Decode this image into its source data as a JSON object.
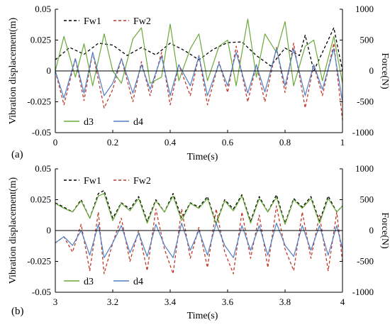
{
  "chart_data": [
    {
      "panel_label": "(a)",
      "type": "line",
      "xlabel": "Time(s)",
      "ylabel_left": "Vibration displacement(m)",
      "ylabel_right": "Force(N)",
      "xlim": [
        0,
        1
      ],
      "xticks": [
        0,
        0.2,
        0.4,
        0.6,
        0.8,
        1
      ],
      "xtick_labels": [
        "0",
        "0.2",
        "0.4",
        "0.6",
        "0.8",
        "1"
      ],
      "ylim_left": [
        -0.05,
        0.05
      ],
      "yticks_left": [
        -0.05,
        -0.025,
        0,
        0.025,
        0.05
      ],
      "ytick_labels_left": [
        "-0.05",
        "-0.025",
        "0",
        "0.025",
        "0.05"
      ],
      "ylim_right": [
        -1000,
        1000
      ],
      "yticks_right": [
        -1000,
        -500,
        0,
        500,
        1000
      ],
      "ytick_labels_right": [
        "-1000",
        "-500",
        "0",
        "500",
        "1000"
      ],
      "grid": false,
      "legend_top": "top-left",
      "legend_bottom": "bottom-left",
      "series": [
        {
          "name": "Fw1",
          "axis": "right",
          "color": "#000000",
          "dash": true,
          "x": [
            0,
            0.05,
            0.1,
            0.15,
            0.2,
            0.25,
            0.3,
            0.35,
            0.4,
            0.45,
            0.5,
            0.55,
            0.6,
            0.65,
            0.7,
            0.75,
            0.8,
            0.85,
            0.87,
            0.9,
            0.95,
            0.97,
            1
          ],
          "y": [
            180,
            380,
            270,
            450,
            420,
            250,
            380,
            260,
            450,
            330,
            180,
            350,
            460,
            470,
            250,
            80,
            370,
            250,
            580,
            0,
            500,
            700,
            0
          ]
        },
        {
          "name": "Fw2",
          "axis": "right",
          "color": "#c0392b",
          "dash": true,
          "x": [
            0,
            0.03,
            0.07,
            0.1,
            0.13,
            0.17,
            0.2,
            0.23,
            0.27,
            0.3,
            0.33,
            0.37,
            0.4,
            0.43,
            0.47,
            0.5,
            0.53,
            0.57,
            0.6,
            0.63,
            0.67,
            0.7,
            0.73,
            0.77,
            0.8,
            0.83,
            0.87,
            0.9,
            0.93,
            0.97,
            1
          ],
          "y": [
            0,
            -550,
            200,
            -480,
            300,
            -600,
            -300,
            200,
            -500,
            150,
            -400,
            300,
            -550,
            100,
            -400,
            250,
            -550,
            150,
            -350,
            400,
            -500,
            100,
            -500,
            380,
            -350,
            450,
            -600,
            100,
            -400,
            450,
            -800
          ]
        },
        {
          "name": "d3",
          "axis": "left",
          "color": "#6aaa3a",
          "dash": false,
          "x": [
            0,
            0.03,
            0.07,
            0.1,
            0.13,
            0.17,
            0.2,
            0.23,
            0.27,
            0.3,
            0.33,
            0.37,
            0.4,
            0.43,
            0.47,
            0.5,
            0.53,
            0.57,
            0.6,
            0.63,
            0.67,
            0.7,
            0.73,
            0.77,
            0.8,
            0.83,
            0.87,
            0.9,
            0.93,
            0.97,
            1
          ],
          "y": [
            0,
            0.028,
            -0.005,
            0.022,
            -0.012,
            0.03,
            0.0,
            -0.01,
            0.026,
            0.035,
            -0.01,
            -0.005,
            0.038,
            -0.008,
            0.018,
            0.03,
            -0.008,
            0.02,
            0.025,
            -0.012,
            0.042,
            -0.005,
            0.03,
            0.015,
            0.04,
            -0.012,
            0.02,
            0.025,
            -0.008,
            0.028,
            -0.01
          ]
        },
        {
          "name": "d4",
          "axis": "left",
          "color": "#4f7fc4",
          "dash": false,
          "x": [
            0,
            0.03,
            0.07,
            0.1,
            0.13,
            0.17,
            0.2,
            0.23,
            0.27,
            0.3,
            0.33,
            0.37,
            0.4,
            0.43,
            0.47,
            0.5,
            0.53,
            0.57,
            0.6,
            0.63,
            0.67,
            0.7,
            0.73,
            0.77,
            0.8,
            0.83,
            0.87,
            0.9,
            0.93,
            0.97,
            1
          ],
          "y": [
            0,
            -0.022,
            0.01,
            -0.018,
            0.015,
            -0.02,
            -0.01,
            0.01,
            -0.018,
            0.005,
            -0.015,
            0.012,
            -0.02,
            0.005,
            -0.012,
            0.012,
            -0.02,
            0.006,
            -0.012,
            0.015,
            -0.018,
            0.005,
            -0.017,
            0.018,
            -0.012,
            0.018,
            -0.02,
            0.005,
            -0.015,
            0.018,
            -0.025
          ]
        }
      ]
    },
    {
      "panel_label": "(b)",
      "type": "line",
      "xlabel": "Time(s)",
      "ylabel_left": "Vibration displacement(m)",
      "ylabel_right": "Force(N)",
      "xlim": [
        3,
        4
      ],
      "xticks": [
        3,
        3.2,
        3.4,
        3.6,
        3.8,
        4
      ],
      "xtick_labels": [
        "3",
        "3.2",
        "3.4",
        "3.6",
        "3.8",
        "4"
      ],
      "ylim_left": [
        -0.05,
        0.05
      ],
      "yticks_left": [
        -0.05,
        -0.025,
        0,
        0.025,
        0.05
      ],
      "ytick_labels_left": [
        "-0.05",
        "-0.025",
        "0",
        "0.025",
        "0.05"
      ],
      "ylim_right": [
        -1000,
        1000
      ],
      "yticks_right": [
        -1000,
        -500,
        0,
        500,
        1000
      ],
      "ytick_labels_right": [
        "-1000",
        "-500",
        "0",
        "500",
        "1000"
      ],
      "grid": false,
      "legend_top": "top-left",
      "legend_bottom": "bottom-left",
      "series": [
        {
          "name": "Fw1",
          "axis": "right",
          "color": "#000000",
          "dash": true,
          "x": [
            3,
            3.03,
            3.06,
            3.09,
            3.12,
            3.15,
            3.17,
            3.2,
            3.23,
            3.26,
            3.29,
            3.32,
            3.35,
            3.38,
            3.41,
            3.44,
            3.47,
            3.5,
            3.53,
            3.56,
            3.59,
            3.62,
            3.65,
            3.68,
            3.71,
            3.74,
            3.77,
            3.8,
            3.83,
            3.86,
            3.89,
            3.92,
            3.95,
            3.98,
            4
          ],
          "y": [
            450,
            380,
            300,
            500,
            200,
            600,
            650,
            200,
            450,
            350,
            550,
            150,
            500,
            300,
            600,
            200,
            450,
            380,
            550,
            120,
            500,
            350,
            580,
            150,
            550,
            300,
            580,
            120,
            520,
            380,
            550,
            150,
            560,
            300,
            400
          ]
        },
        {
          "name": "Fw2",
          "axis": "right",
          "color": "#c0392b",
          "dash": true,
          "x": [
            3,
            3.03,
            3.06,
            3.09,
            3.12,
            3.15,
            3.17,
            3.2,
            3.23,
            3.26,
            3.29,
            3.32,
            3.35,
            3.38,
            3.41,
            3.44,
            3.47,
            3.5,
            3.53,
            3.56,
            3.59,
            3.62,
            3.65,
            3.68,
            3.71,
            3.74,
            3.77,
            3.8,
            3.83,
            3.86,
            3.89,
            3.92,
            3.95,
            3.98,
            4
          ],
          "y": [
            -200,
            -100,
            -350,
            100,
            -650,
            300,
            -700,
            -200,
            200,
            -500,
            0,
            -650,
            350,
            -300,
            -700,
            350,
            -450,
            50,
            -600,
            350,
            -350,
            -700,
            300,
            -450,
            250,
            -600,
            400,
            -300,
            -650,
            300,
            -450,
            250,
            -650,
            300,
            -500
          ]
        },
        {
          "name": "d3",
          "axis": "left",
          "color": "#6aaa3a",
          "dash": false,
          "x": [
            3,
            3.03,
            3.06,
            3.09,
            3.12,
            3.15,
            3.17,
            3.2,
            3.23,
            3.26,
            3.29,
            3.32,
            3.35,
            3.38,
            3.41,
            3.44,
            3.47,
            3.5,
            3.53,
            3.56,
            3.59,
            3.62,
            3.65,
            3.68,
            3.71,
            3.74,
            3.77,
            3.8,
            3.83,
            3.86,
            3.89,
            3.92,
            3.95,
            3.98,
            4
          ],
          "y": [
            0.022,
            0.018,
            0.015,
            0.024,
            0.01,
            0.028,
            0.03,
            0.008,
            0.022,
            0.016,
            0.026,
            0.006,
            0.024,
            0.015,
            0.028,
            0.008,
            0.022,
            0.018,
            0.026,
            0.005,
            0.024,
            0.016,
            0.028,
            0.006,
            0.026,
            0.015,
            0.027,
            0.005,
            0.025,
            0.018,
            0.026,
            0.006,
            0.026,
            0.015,
            0.02
          ]
        },
        {
          "name": "d4",
          "axis": "left",
          "color": "#4f7fc4",
          "dash": false,
          "x": [
            3,
            3.03,
            3.06,
            3.09,
            3.12,
            3.15,
            3.17,
            3.2,
            3.23,
            3.26,
            3.29,
            3.32,
            3.35,
            3.38,
            3.41,
            3.44,
            3.47,
            3.5,
            3.53,
            3.56,
            3.59,
            3.62,
            3.65,
            3.68,
            3.71,
            3.74,
            3.77,
            3.8,
            3.83,
            3.86,
            3.89,
            3.92,
            3.95,
            3.98,
            4
          ],
          "y": [
            -0.01,
            -0.005,
            -0.012,
            0.0,
            -0.02,
            0.005,
            -0.022,
            -0.01,
            0.004,
            -0.018,
            -0.002,
            -0.021,
            0.005,
            -0.012,
            -0.022,
            0.006,
            -0.016,
            0.0,
            -0.02,
            0.006,
            -0.012,
            -0.022,
            0.004,
            -0.016,
            0.004,
            -0.02,
            0.006,
            -0.012,
            -0.021,
            0.004,
            -0.016,
            0.004,
            -0.02,
            0.004,
            -0.015
          ]
        }
      ]
    }
  ]
}
